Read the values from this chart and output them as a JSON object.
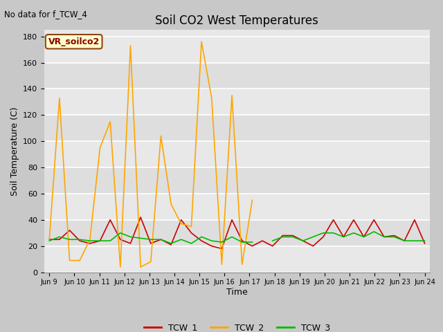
{
  "title": "Soil CO2 West Temperatures",
  "ylabel": "Soil Temperature (C)",
  "xlabel": "Time",
  "annotation_text": "No data for f_TCW_4",
  "legend_label": "VR_soilco2",
  "ylim": [
    0,
    185
  ],
  "yticks": [
    0,
    20,
    40,
    60,
    80,
    100,
    120,
    140,
    160,
    180
  ],
  "xtick_labels": [
    "Jun 9",
    "Jun 10",
    "Jun 11",
    "Jun 12",
    "Jun 13",
    "Jun 14",
    "Jun 15",
    "Jun 16",
    "Jun 17",
    "Jun 18",
    "Jun 19",
    "Jun 20",
    "Jun 21",
    "Jun 22",
    "Jun 23",
    "Jun 24"
  ],
  "fig_bg_color": "#c8c8c8",
  "plot_bg_color": "#e8e8e8",
  "band_color_light": "#d8d8d8",
  "TCW_1_color": "#cc0000",
  "TCW_2_color": "#ffa500",
  "TCW_3_color": "#00bb00",
  "TCW_1": [
    25,
    25,
    32,
    24,
    22,
    24,
    40,
    25,
    22,
    42,
    22,
    25,
    21,
    40,
    30,
    24,
    20,
    18,
    40,
    24,
    20,
    24,
    20,
    28,
    28,
    24,
    20,
    27,
    40,
    27,
    40,
    27,
    40,
    27,
    28,
    24,
    40,
    22
  ],
  "TCW_2": [
    25,
    133,
    9,
    9,
    25,
    95,
    115,
    4,
    173,
    4,
    8,
    104,
    52,
    37,
    35,
    176,
    133,
    6,
    135,
    6,
    55,
    null,
    null,
    null,
    null,
    null,
    null,
    null,
    null,
    null,
    null,
    null,
    null,
    null,
    null,
    null,
    null,
    null
  ],
  "TCW_3": [
    24,
    27,
    25,
    25,
    24,
    24,
    24,
    30,
    27,
    26,
    25,
    25,
    22,
    25,
    22,
    27,
    24,
    23,
    27,
    23,
    23,
    null,
    24,
    27,
    27,
    24,
    27,
    30,
    30,
    27,
    30,
    27,
    31,
    27,
    27,
    24,
    24,
    24
  ],
  "legend_entries": [
    "TCW_1",
    "TCW_2",
    "TCW_3"
  ],
  "line_width": 1.2
}
